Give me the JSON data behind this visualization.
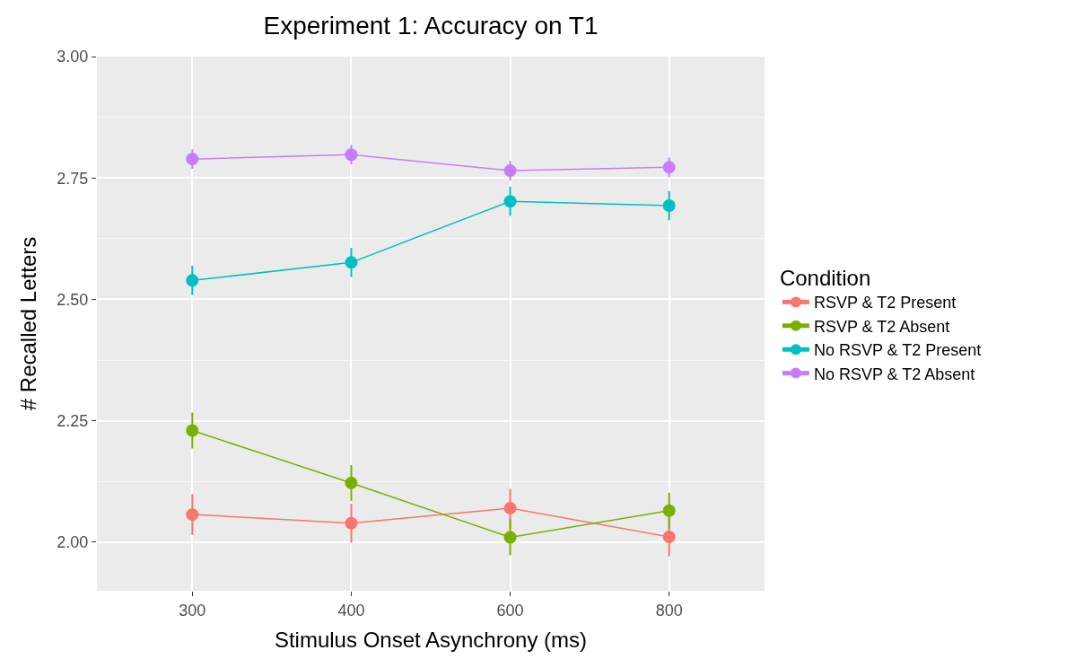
{
  "chart_data": {
    "type": "line",
    "title": "Experiment 1: Accuracy on T1",
    "xlabel": "Stimulus Onset Asynchrony (ms)",
    "ylabel": "# Recalled Letters",
    "legend_title": "Condition",
    "categories": [
      "300",
      "400",
      "600",
      "800"
    ],
    "series": [
      {
        "name": "RSVP & T2 Present",
        "color": "#f8766d",
        "values": [
          2.057,
          2.039,
          2.07,
          2.011
        ],
        "errors": [
          0.042,
          0.04,
          0.04,
          0.04
        ]
      },
      {
        "name": "RSVP & T2 Absent",
        "color": "#7cae00",
        "values": [
          2.23,
          2.122,
          2.01,
          2.065
        ],
        "errors": [
          0.037,
          0.037,
          0.037,
          0.037
        ]
      },
      {
        "name": "No RSVP & T2 Present",
        "color": "#00bfc4",
        "values": [
          2.539,
          2.576,
          2.702,
          2.693
        ],
        "errors": [
          0.03,
          0.03,
          0.03,
          0.03
        ]
      },
      {
        "name": "No RSVP & T2 Absent",
        "color": "#c77cff",
        "values": [
          2.789,
          2.798,
          2.765,
          2.772
        ],
        "errors": [
          0.02,
          0.02,
          0.02,
          0.02
        ]
      }
    ],
    "ylim": [
      1.9,
      3.0
    ],
    "yticks": [
      {
        "value": 2.0,
        "label": "2.00"
      },
      {
        "value": 2.25,
        "label": "2.25"
      },
      {
        "value": 2.5,
        "label": "2.50"
      },
      {
        "value": 2.75,
        "label": "2.75"
      },
      {
        "value": 3.0,
        "label": "3.00"
      }
    ],
    "grid": true,
    "legend": "right",
    "marker": "circle",
    "line_style": "solid"
  }
}
